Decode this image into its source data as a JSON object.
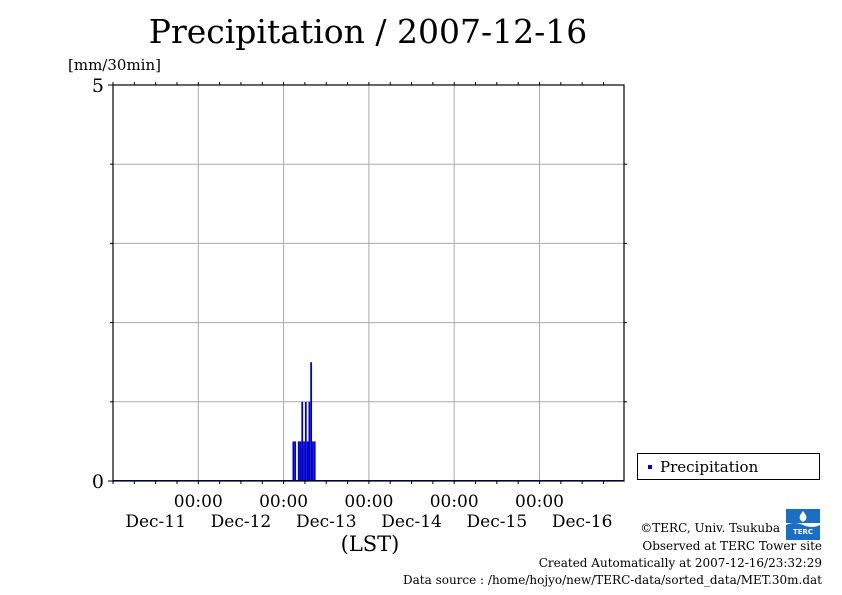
{
  "chart_data": {
    "type": "bar",
    "title": "Precipitation / 2007-12-16",
    "ylabel": "[mm/30min]",
    "xlabel": "(LST)",
    "ylim": [
      0,
      5
    ],
    "y_ticks": [
      0,
      5
    ],
    "xlim_days": [
      "Dec-11 00:00",
      "Dec-16 24:00"
    ],
    "x_tick_times": [
      "00:00",
      "00:00",
      "00:00",
      "00:00",
      "00:00"
    ],
    "x_tick_dates": [
      "Dec-11",
      "Dec-12",
      "Dec-13",
      "Dec-14",
      "Dec-15",
      "Dec-16"
    ],
    "grid": true,
    "legend_position": "bottom-right, outside plot",
    "series": [
      {
        "name": "Precipitation",
        "color": "#0000cc",
        "points": [
          {
            "time": "2007-12-13 02:30",
            "value": 0.5
          },
          {
            "time": "2007-12-13 03:00",
            "value": 0.5
          },
          {
            "time": "2007-12-13 04:00",
            "value": 0.5
          },
          {
            "time": "2007-12-13 04:30",
            "value": 0.5
          },
          {
            "time": "2007-12-13 05:00",
            "value": 1.0
          },
          {
            "time": "2007-12-13 05:30",
            "value": 0.5
          },
          {
            "time": "2007-12-13 06:00",
            "value": 1.0
          },
          {
            "time": "2007-12-13 06:30",
            "value": 0.5
          },
          {
            "time": "2007-12-13 07:00",
            "value": 1.0
          },
          {
            "time": "2007-12-13 07:30",
            "value": 1.5
          },
          {
            "time": "2007-12-13 08:00",
            "value": 0.5
          },
          {
            "time": "2007-12-13 08:30",
            "value": 0.5
          }
        ]
      }
    ]
  },
  "legend": {
    "label": "Precipitation"
  },
  "footer": {
    "copyright": "©TERC, Univ. Tsukuba",
    "site": "Observed at TERC Tower site",
    "created": "Created Automatically at 2007-12-16/23:32:29",
    "source": "Data source : /home/hojyo/new/TERC-data/sorted_data/MET.30m.dat"
  },
  "logo": {
    "text": "TERC",
    "color": "#1a6fc4"
  }
}
